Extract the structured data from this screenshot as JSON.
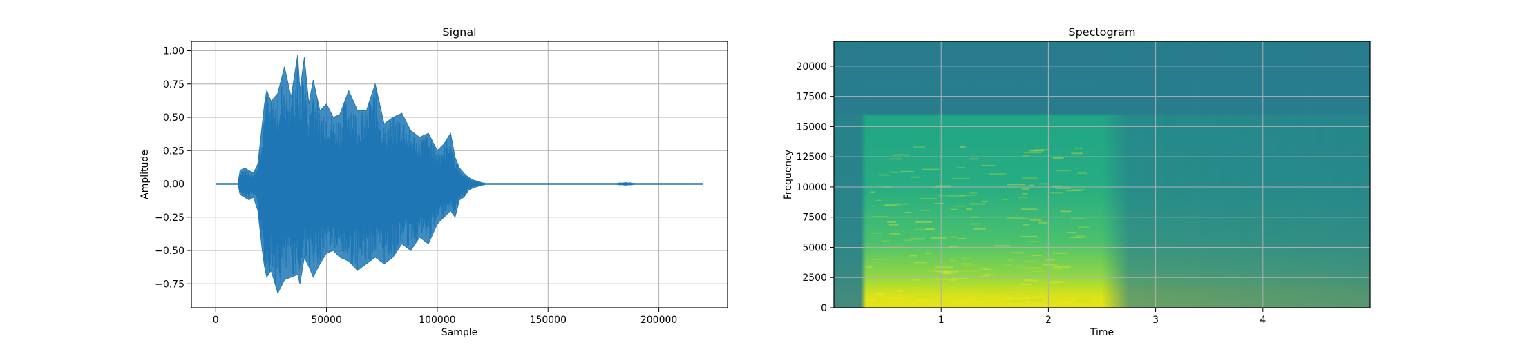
{
  "chart_data": [
    {
      "type": "line",
      "title": "Signal",
      "xlabel": "Sample",
      "ylabel": "Amplitude",
      "xlim": [
        -11000,
        231000
      ],
      "ylim": [
        -0.93,
        1.07
      ],
      "grid": true,
      "color": "#1f77b4",
      "x_ticks": [
        0,
        50000,
        100000,
        150000,
        200000
      ],
      "x_tick_labels": [
        "0",
        "50000",
        "100000",
        "150000",
        "200000"
      ],
      "y_ticks": [
        -0.75,
        -0.5,
        -0.25,
        0.0,
        0.25,
        0.5,
        0.75,
        1.0
      ],
      "y_tick_labels": [
        "−0.75",
        "−0.50",
        "−0.25",
        "0.00",
        "0.25",
        "0.50",
        "0.75",
        "1.00"
      ],
      "series": [
        {
          "x": [
            0,
            10000,
            11000,
            13000,
            15000,
            17000,
            19000,
            20000,
            21000,
            22000,
            23000,
            25000,
            28000,
            31000,
            34000,
            37000,
            38000,
            40000,
            42000,
            44000,
            47000,
            50000,
            53000,
            56000,
            60000,
            64000,
            68000,
            72000,
            76000,
            80000,
            84000,
            88000,
            92000,
            96000,
            100000,
            103000,
            106000,
            108000,
            110000,
            112000,
            114000,
            116000,
            118000,
            120000,
            122000,
            130000,
            160000,
            180000,
            185000,
            190000,
            200000,
            220000
          ],
          "upper": [
            0.0,
            0.0,
            0.1,
            0.12,
            0.1,
            0.08,
            0.15,
            0.3,
            0.45,
            0.6,
            0.7,
            0.62,
            0.68,
            0.88,
            0.65,
            0.97,
            0.7,
            0.95,
            0.6,
            0.78,
            0.55,
            0.6,
            0.5,
            0.52,
            0.7,
            0.55,
            0.55,
            0.75,
            0.45,
            0.5,
            0.53,
            0.4,
            0.35,
            0.38,
            0.25,
            0.3,
            0.38,
            0.2,
            0.12,
            0.08,
            0.05,
            0.03,
            0.02,
            0.01,
            0.0,
            0.0,
            0.0,
            0.0,
            0.01,
            0.0,
            0.0,
            0.0
          ],
          "lower": [
            0.0,
            0.0,
            -0.08,
            -0.1,
            -0.12,
            -0.1,
            -0.2,
            -0.35,
            -0.5,
            -0.62,
            -0.7,
            -0.65,
            -0.82,
            -0.72,
            -0.7,
            -0.68,
            -0.75,
            -0.55,
            -0.62,
            -0.7,
            -0.6,
            -0.52,
            -0.5,
            -0.55,
            -0.58,
            -0.65,
            -0.6,
            -0.55,
            -0.6,
            -0.55,
            -0.45,
            -0.5,
            -0.4,
            -0.45,
            -0.3,
            -0.25,
            -0.2,
            -0.25,
            -0.12,
            -0.1,
            -0.05,
            -0.03,
            -0.02,
            -0.01,
            0.0,
            0.0,
            0.0,
            0.0,
            -0.01,
            0.0,
            0.0,
            0.0
          ]
        }
      ]
    },
    {
      "type": "heatmap",
      "title": "Spectogram",
      "xlabel": "Time",
      "ylabel": "Frequency",
      "xlim": [
        0,
        5
      ],
      "ylim": [
        0,
        22050
      ],
      "grid": true,
      "colormap": "viridis",
      "x_ticks": [
        1,
        2,
        3,
        4
      ],
      "x_tick_labels": [
        "1",
        "2",
        "3",
        "4"
      ],
      "y_ticks": [
        0,
        2500,
        5000,
        7500,
        10000,
        12500,
        15000,
        17500,
        20000
      ],
      "y_tick_labels": [
        "0",
        "2500",
        "5000",
        "7500",
        "10000",
        "12500",
        "15000",
        "17500",
        "20000"
      ]
    }
  ]
}
